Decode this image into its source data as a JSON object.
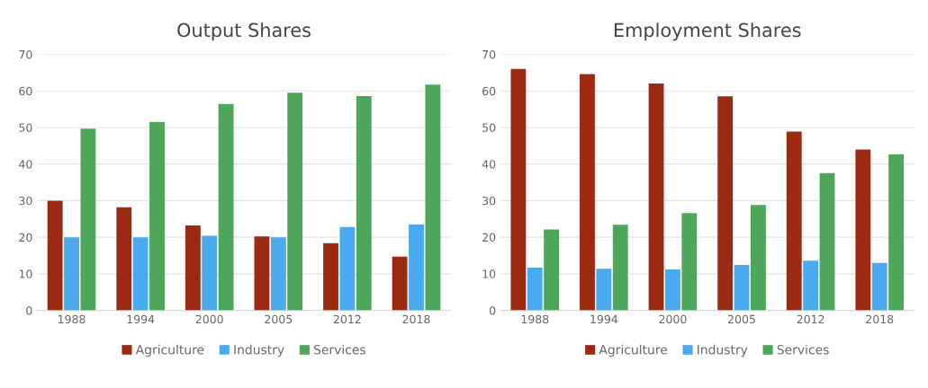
{
  "chart_data": [
    {
      "type": "bar",
      "title": "Output Shares",
      "categories": [
        "1988",
        "1994",
        "2000",
        "2005",
        "2012",
        "2018"
      ],
      "ylim": [
        0,
        70
      ],
      "yticks": [
        0,
        10,
        20,
        30,
        40,
        50,
        60,
        70
      ],
      "grid": "y",
      "legend": "bottom",
      "series": [
        {
          "name": "Agriculture",
          "color": "#9c2a12",
          "values": [
            30,
            28.2,
            23.2,
            20.2,
            18.4,
            14.7
          ]
        },
        {
          "name": "Industry",
          "color": "#4aaaee",
          "values": [
            20,
            20,
            20.4,
            20,
            22.8,
            23.5
          ]
        },
        {
          "name": "Services",
          "color": "#4ea65a",
          "values": [
            49.7,
            51.5,
            56.4,
            59.5,
            58.6,
            61.7
          ]
        }
      ]
    },
    {
      "type": "bar",
      "title": "Employment Shares",
      "categories": [
        "1988",
        "1994",
        "2000",
        "2005",
        "2012",
        "2018"
      ],
      "ylim": [
        0,
        70
      ],
      "yticks": [
        0,
        10,
        20,
        30,
        40,
        50,
        60,
        70
      ],
      "grid": "y",
      "legend": "bottom",
      "series": [
        {
          "name": "Agriculture",
          "color": "#9c2a12",
          "values": [
            66,
            64.6,
            62,
            58.5,
            48.9,
            44
          ]
        },
        {
          "name": "Industry",
          "color": "#4aaaee",
          "values": [
            11.7,
            11.4,
            11.2,
            12.4,
            13.6,
            13
          ]
        },
        {
          "name": "Services",
          "color": "#4ea65a",
          "values": [
            22.1,
            23.4,
            26.6,
            28.8,
            37.5,
            42.7
          ]
        }
      ]
    }
  ]
}
